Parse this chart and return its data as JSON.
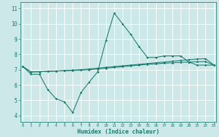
{
  "xlabel": "Humidex (Indice chaleur)",
  "bg_color": "#cce8e8",
  "grid_color": "#ffffff",
  "line_color": "#1a7a6e",
  "x_ticks": [
    0,
    1,
    2,
    3,
    4,
    5,
    6,
    7,
    8,
    9,
    10,
    11,
    12,
    13,
    14,
    15,
    16,
    17,
    18,
    19,
    20,
    21,
    22,
    23
  ],
  "y_ticks": [
    4,
    5,
    6,
    7,
    8,
    9,
    10,
    11
  ],
  "ylim": [
    3.6,
    11.4
  ],
  "xlim": [
    -0.3,
    23.3
  ],
  "line1_x": [
    0,
    1,
    2,
    3,
    4,
    5,
    6,
    7,
    8,
    9,
    10,
    11,
    12,
    13,
    14,
    15,
    16,
    17,
    18,
    19,
    20,
    21,
    22,
    23
  ],
  "line1_y": [
    7.2,
    6.7,
    6.7,
    5.7,
    5.1,
    4.9,
    4.2,
    5.5,
    6.2,
    6.85,
    8.9,
    10.7,
    10.0,
    9.3,
    8.5,
    7.8,
    7.8,
    7.9,
    7.9,
    7.9,
    7.5,
    7.3,
    7.3,
    7.3
  ],
  "line2_x": [
    0,
    1,
    2,
    3,
    4,
    5,
    6,
    7,
    8,
    9,
    10,
    11,
    12,
    13,
    14,
    15,
    16,
    17,
    18,
    19,
    20,
    21,
    22,
    23
  ],
  "line2_y": [
    7.2,
    6.85,
    6.87,
    6.89,
    6.91,
    6.93,
    6.95,
    6.97,
    7.0,
    7.05,
    7.1,
    7.15,
    7.2,
    7.25,
    7.3,
    7.35,
    7.38,
    7.42,
    7.45,
    7.48,
    7.5,
    7.52,
    7.53,
    7.3
  ],
  "line3_x": [
    0,
    1,
    2,
    3,
    4,
    5,
    6,
    7,
    8,
    9,
    10,
    11,
    12,
    13,
    14,
    15,
    16,
    17,
    18,
    19,
    20,
    21,
    22,
    23
  ],
  "line3_y": [
    7.2,
    6.85,
    6.87,
    6.89,
    6.92,
    6.94,
    6.97,
    7.0,
    7.05,
    7.1,
    7.15,
    7.2,
    7.25,
    7.3,
    7.35,
    7.4,
    7.45,
    7.5,
    7.55,
    7.6,
    7.65,
    7.7,
    7.72,
    7.3
  ]
}
